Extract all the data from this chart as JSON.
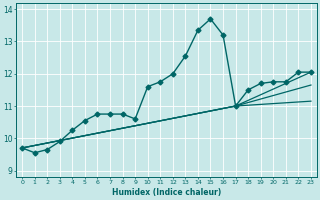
{
  "xlabel": "Humidex (Indice chaleur)",
  "bg_color": "#c8e8e8",
  "line_color": "#006666",
  "grid_color": "#ffffff",
  "xlim": [
    -0.5,
    23.5
  ],
  "ylim": [
    8.8,
    14.2
  ],
  "yticks": [
    9,
    10,
    11,
    12,
    13,
    14
  ],
  "xticks": [
    0,
    1,
    2,
    3,
    4,
    5,
    6,
    7,
    8,
    9,
    10,
    11,
    12,
    13,
    14,
    15,
    16,
    17,
    18,
    19,
    20,
    21,
    22,
    23
  ],
  "series": [
    {
      "x": [
        0,
        1,
        2,
        3,
        4,
        5,
        6,
        7,
        8,
        9,
        10,
        11,
        12,
        13,
        14,
        15,
        16,
        17,
        18,
        19,
        20,
        21,
        22,
        23
      ],
      "y": [
        9.7,
        9.55,
        9.65,
        9.9,
        10.25,
        10.55,
        10.75,
        10.75,
        10.75,
        10.6,
        11.6,
        11.75,
        12.0,
        12.55,
        13.35,
        13.7,
        13.2,
        11.0,
        11.5,
        11.7,
        11.75,
        11.75,
        12.05,
        12.05
      ],
      "marker": "D",
      "markersize": 2.5,
      "linewidth": 1.0,
      "zorder": 4
    },
    {
      "x": [
        0,
        17,
        23
      ],
      "y": [
        9.7,
        11.0,
        12.05
      ],
      "marker": null,
      "markersize": 0,
      "linewidth": 0.9,
      "zorder": 3
    },
    {
      "x": [
        0,
        17,
        23
      ],
      "y": [
        9.7,
        11.0,
        11.65
      ],
      "marker": null,
      "markersize": 0,
      "linewidth": 0.9,
      "zorder": 3
    },
    {
      "x": [
        0,
        17,
        23
      ],
      "y": [
        9.7,
        11.0,
        11.15
      ],
      "marker": null,
      "markersize": 0,
      "linewidth": 0.9,
      "zorder": 3
    }
  ]
}
